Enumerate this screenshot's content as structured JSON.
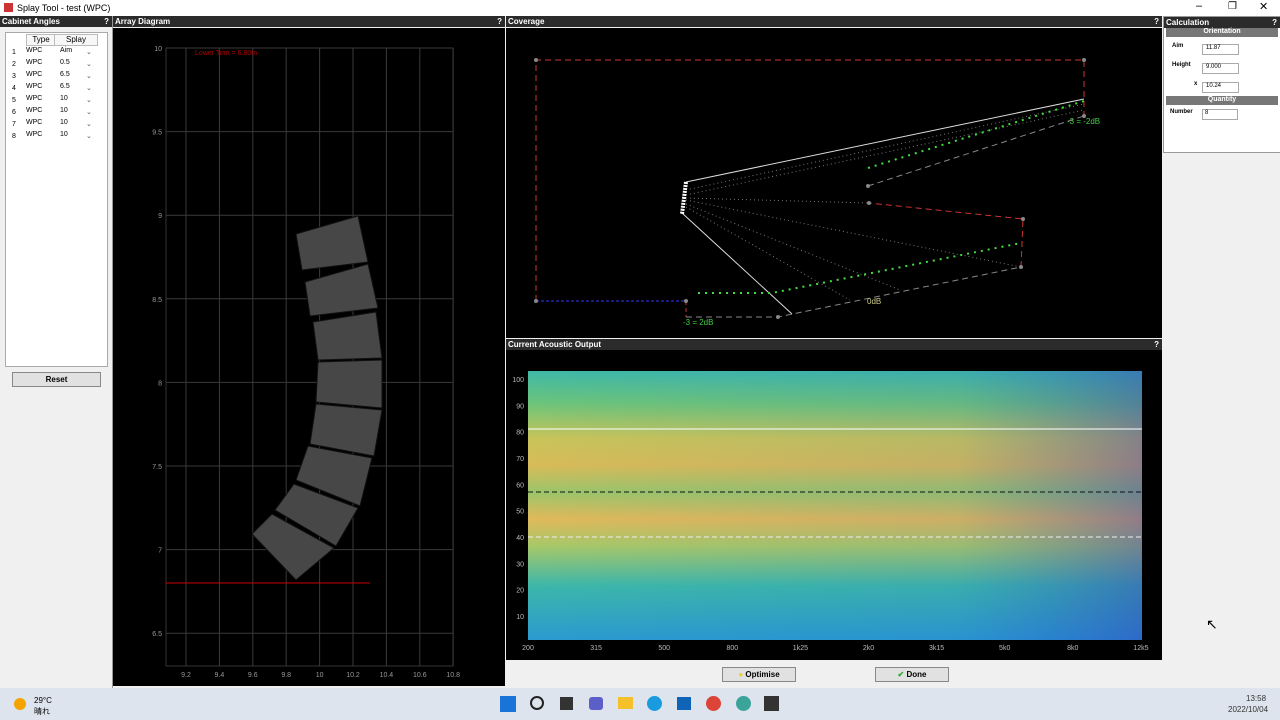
{
  "window": {
    "title": "Splay Tool - test (WPC)"
  },
  "cabinet_angles": {
    "title": "Cabinet Angles",
    "help": "?",
    "columns": [
      "Type",
      "Splay"
    ],
    "rows": [
      [
        "1",
        "WPC",
        "Aim"
      ],
      [
        "2",
        "WPC",
        "0.5"
      ],
      [
        "3",
        "WPC",
        "6.5"
      ],
      [
        "4",
        "WPC",
        "6.5"
      ],
      [
        "5",
        "WPC",
        "10"
      ],
      [
        "6",
        "WPC",
        "10"
      ],
      [
        "7",
        "WPC",
        "10"
      ],
      [
        "8",
        "WPC",
        "10"
      ]
    ],
    "reset": "Reset"
  },
  "array_diagram": {
    "title": "Array Diagram",
    "help": "?",
    "annotation": "Lower Trim = 6.80m",
    "yticks": [
      10,
      9.5,
      9,
      8.5,
      8,
      7.5,
      7,
      6.5
    ],
    "xticks": [
      9.2,
      9.4,
      9.6,
      9.8,
      10,
      10.2,
      10.4,
      10.6,
      10.8
    ]
  },
  "coverage": {
    "title": "Coverage",
    "help": "?",
    "labels": [
      "-3 = -2dB",
      "0dB",
      "-3 = 2dB"
    ]
  },
  "acoustic_output": {
    "title": "Current Acoustic Output",
    "help": "?",
    "yticks": [
      100,
      90,
      80,
      70,
      60,
      50,
      40,
      30,
      20,
      10
    ],
    "xticks": [
      "200",
      "315",
      "500",
      "800",
      "1k25",
      "2k0",
      "3k15",
      "5k0",
      "8k0",
      "12k5"
    ]
  },
  "calculation": {
    "title": "Calculation",
    "help": "?",
    "orientation": "Orientation",
    "fields": [
      {
        "label": "Aim",
        "value": "11.87"
      },
      {
        "label": "Height",
        "value": "9.000"
      },
      {
        "label": "x",
        "value": "10.24"
      }
    ],
    "quantity": "Quantity",
    "number": {
      "label": "Number",
      "value": "8"
    }
  },
  "buttons": {
    "optimise": "Optimise",
    "done": "Done"
  },
  "taskbar": {
    "temperature": "29°C",
    "weather": "晴れ",
    "time": "13:58",
    "date": "2022/10/04"
  }
}
